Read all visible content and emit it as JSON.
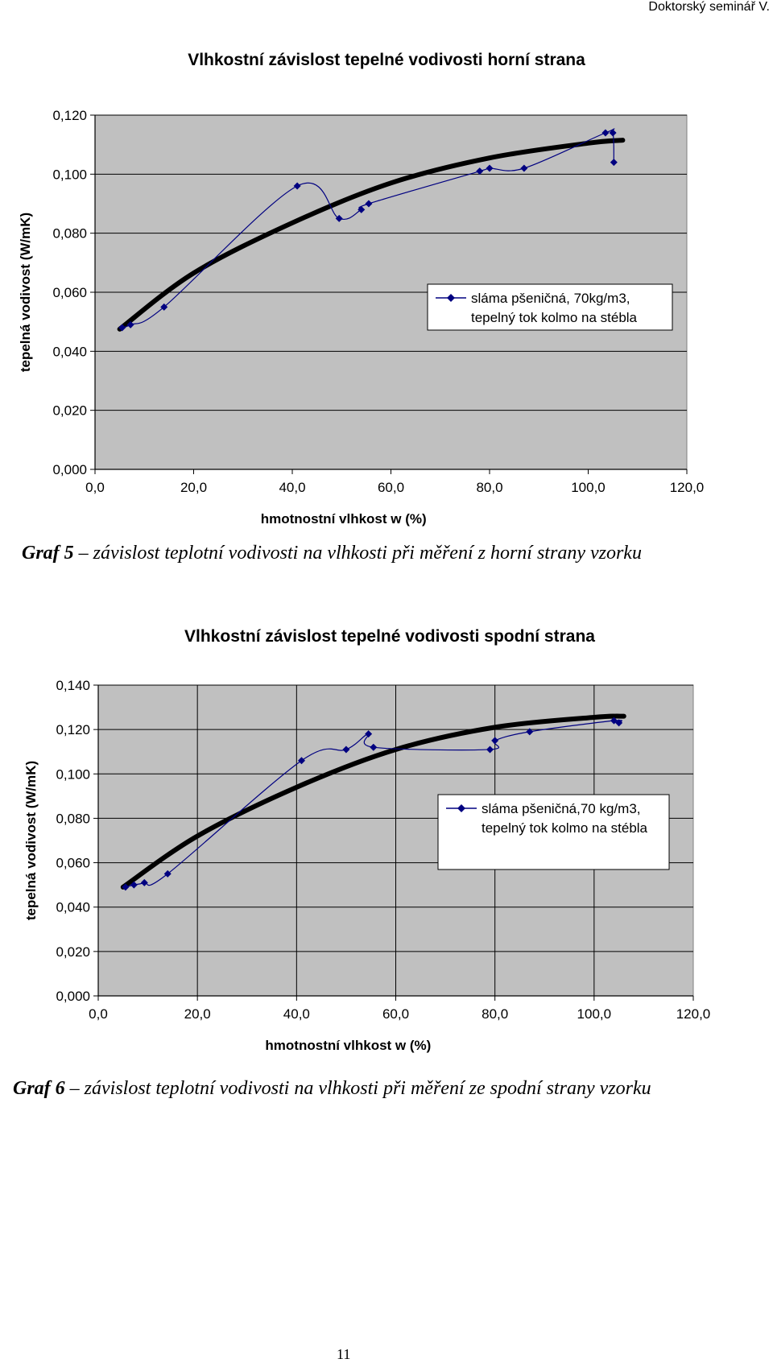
{
  "header": {
    "text": "Doktorský seminář V."
  },
  "charts": [
    {
      "caption": {
        "label": "Graf 5",
        "dash": " – ",
        "text": "závislost teplotní vodivosti na vlhkosti při měření z horní strany vzorku"
      }
    },
    {
      "caption": {
        "label": "Graf 6",
        "dash": " – ",
        "text": "závislost teplotní vodivosti na vlhkosti při měření ze spodní strany vzorku"
      }
    }
  ],
  "page_number": "11",
  "colors": {
    "plot_bg": "#c0c0c0",
    "series": "#000080",
    "trend": "#000000",
    "grid": "#000000"
  },
  "chart_data": [
    {
      "type": "line",
      "title": "Vlhkostní závislost tepelné vodivosti horní strana",
      "xlabel": "hmotnostní vlhkost w (%)",
      "ylabel": "tepelná vodivost (W/mK)",
      "xlim": [
        0,
        120
      ],
      "ylim": [
        0,
        0.12
      ],
      "xticks": [
        "0,0",
        "20,0",
        "40,0",
        "60,0",
        "80,0",
        "100,0",
        "120,0"
      ],
      "yticks": [
        "0,000",
        "0,020",
        "0,040",
        "0,060",
        "0,080",
        "0,100",
        "0,120"
      ],
      "vgrid": false,
      "legend": {
        "position": "right",
        "lines": [
          "sláma pšeničná, 70kg/m3,",
          "tepelný tok kolmo na stébla"
        ]
      },
      "series": [
        {
          "name": "sláma pšeničná, 70kg/m3, tepelný tok kolmo na stébla",
          "x": [
            5.5,
            7.2,
            14,
            41,
            49.5,
            54,
            55.5,
            78,
            80,
            87,
            103.5,
            105,
            105.2
          ],
          "y": [
            0.048,
            0.049,
            0.055,
            0.096,
            0.085,
            0.088,
            0.09,
            0.101,
            0.102,
            0.102,
            0.114,
            0.114,
            0.104
          ]
        }
      ],
      "trend": {
        "x": [
          5,
          20,
          40,
          60,
          80,
          100,
          107
        ],
        "y": [
          0.0475,
          0.0665,
          0.0835,
          0.097,
          0.1055,
          0.1105,
          0.1115
        ]
      }
    },
    {
      "type": "line",
      "title": "Vlhkostní závislost tepelné vodivosti spodní strana",
      "xlabel": "hmotnostní vlhkost w (%)",
      "ylabel": "tepelná vodivost (W/mK)",
      "xlim": [
        0,
        120
      ],
      "ylim": [
        0,
        0.14
      ],
      "xticks": [
        "0,0",
        "20,0",
        "40,0",
        "60,0",
        "80,0",
        "100,0",
        "120,0"
      ],
      "yticks": [
        "0,000",
        "0,020",
        "0,040",
        "0,060",
        "0,080",
        "0,100",
        "0,120",
        "0,140"
      ],
      "vgrid": true,
      "legend": {
        "position": "right",
        "lines": [
          "sláma pšeničná,70 kg/m3,",
          "tepelný tok kolmo na stébla"
        ]
      },
      "series": [
        {
          "name": "sláma pšeničná,70 kg/m3, tepelný tok kolmo na stébla",
          "x": [
            5.5,
            7.2,
            9.3,
            14,
            41,
            50,
            54.5,
            55.5,
            79,
            80,
            87,
            104,
            105
          ],
          "y": [
            0.049,
            0.05,
            0.051,
            0.055,
            0.106,
            0.111,
            0.118,
            0.112,
            0.111,
            0.115,
            0.119,
            0.124,
            0.123
          ]
        }
      ],
      "trend": {
        "x": [
          5,
          20,
          40,
          60,
          80,
          100,
          106
        ],
        "y": [
          0.049,
          0.072,
          0.094,
          0.111,
          0.121,
          0.1255,
          0.126
        ]
      }
    }
  ]
}
